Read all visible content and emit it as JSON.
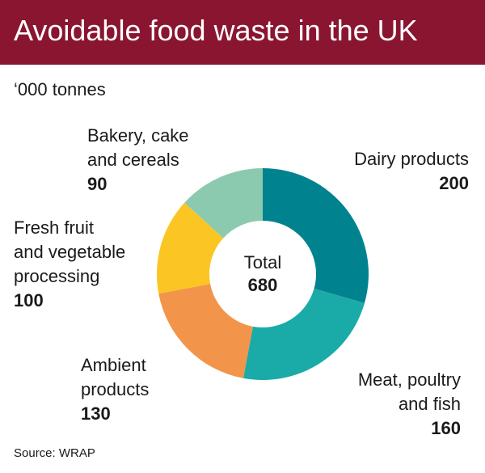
{
  "header": {
    "title": "Avoidable food waste in the UK"
  },
  "unit_label": "‘000 tonnes",
  "source": "Source: WRAP",
  "center": {
    "label": "Total",
    "value": "680"
  },
  "chart_data": {
    "type": "pie",
    "title": "Avoidable food waste in the UK",
    "unit": "‘000 tonnes",
    "total": 680,
    "categories": [
      "Dairy products",
      "Meat, poultry\nand fish",
      "Ambient\nproducts",
      "Fresh fruit\nand vegetable\nprocessing",
      "Bakery, cake\nand cereals"
    ],
    "values": [
      200,
      160,
      130,
      100,
      90
    ],
    "colors": [
      "#00838f",
      "#1aaba8",
      "#f2954a",
      "#fbc523",
      "#8ccab0"
    ]
  }
}
